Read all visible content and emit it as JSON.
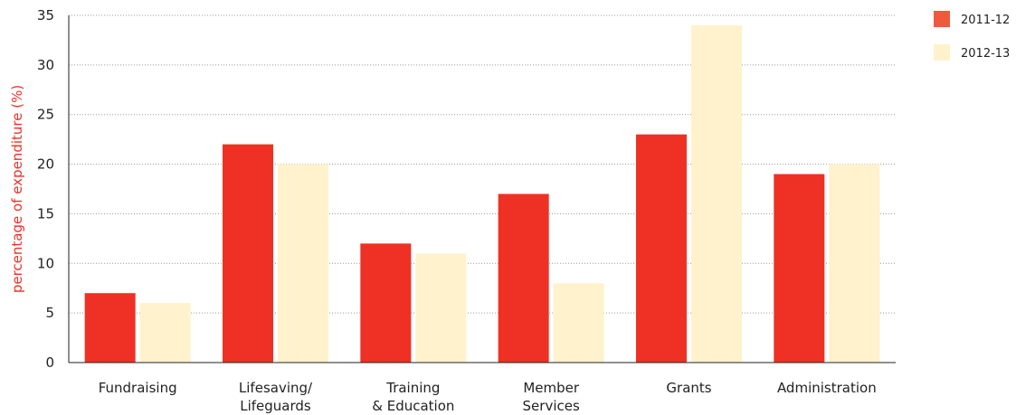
{
  "chart_data": {
    "type": "bar",
    "title": "",
    "xlabel": "",
    "ylabel": "percentage of expenditure (%)",
    "ylim": [
      0,
      35
    ],
    "yticks": [
      "0",
      "5",
      "10",
      "15",
      "20",
      "25",
      "30",
      "35"
    ],
    "grid": true,
    "legend_position": "top-right",
    "categories": [
      [
        "Fundraising"
      ],
      [
        "Lifesaving/",
        "Lifeguards"
      ],
      [
        "Training",
        "& Education"
      ],
      [
        "Member",
        "Services"
      ],
      [
        "Grants"
      ],
      [
        "Administration"
      ]
    ],
    "series": [
      {
        "name": "2011-12",
        "color": "#ee3124",
        "values": [
          7,
          22,
          12,
          17,
          23,
          19
        ]
      },
      {
        "name": "2012-13",
        "color": "#fff2cc",
        "values": [
          6,
          20,
          11,
          8,
          34,
          20
        ]
      }
    ],
    "ylabel_color": "#ee3124",
    "legend_swatch_colors": [
      "#f05a3c",
      "#fff2cc"
    ]
  }
}
